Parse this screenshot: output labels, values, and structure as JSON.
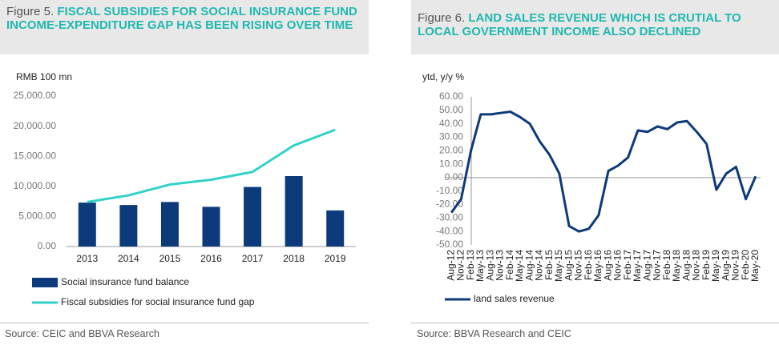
{
  "chart_data": [
    {
      "type": "combo",
      "figure": "Figure 5.",
      "title": "FISCAL SUBSIDIES FOR SOCIAL INSURANCE FUND INCOME-EXPENDITURE GAP HAS BEEN RISING OVER TIME",
      "y_label": "RMB 100 mn",
      "source": "Source: CEIC and BBVA Research",
      "categories": [
        "2013",
        "2014",
        "2015",
        "2016",
        "2017",
        "2018",
        "2019"
      ],
      "series": [
        {
          "name": "Social insurance fund balance",
          "type": "bar",
          "color": "#0d3a7a",
          "values": [
            7300,
            6900,
            7400,
            6600,
            9900,
            11700,
            6000
          ]
        },
        {
          "name": "Fiscal subsidies for social insurance fund gap",
          "type": "line",
          "color": "#33d1c9",
          "values": [
            7400,
            8500,
            10300,
            11100,
            12400,
            16800,
            19400
          ]
        }
      ],
      "ylim": [
        0,
        25000
      ],
      "yticks": [
        {
          "value": 0,
          "label": "0.00"
        },
        {
          "value": 5000,
          "label": "5,000.00"
        },
        {
          "value": 10000,
          "label": "10,000.00"
        },
        {
          "value": 15000,
          "label": "15,000.00"
        },
        {
          "value": 20000,
          "label": "20,000.00"
        },
        {
          "value": 25000,
          "label": "25,000.00"
        }
      ]
    },
    {
      "type": "line",
      "figure": "Figure 6.",
      "title": "LAND SALES REVENUE WHICH IS CRUTIAL TO LOCAL GOVERNMENT INCOME ALSO DECLINED",
      "y_label": "ytd, y/y %",
      "source": "Source: BBVA Research and CEIC",
      "categories": [
        "Aug-12",
        "Nov-12",
        "Feb-13",
        "May-13",
        "Aug-13",
        "Nov-13",
        "Feb-14",
        "May-14",
        "Aug-14",
        "Nov-14",
        "Feb-15",
        "May-15",
        "Aug-15",
        "Nov-15",
        "Feb-16",
        "May-16",
        "Aug-16",
        "Nov-16",
        "Feb-17",
        "May-17",
        "Aug-17",
        "Nov-17",
        "Feb-18",
        "May-18",
        "Aug-18",
        "Nov-18",
        "Feb-19",
        "May-19",
        "Aug-19",
        "Nov-19",
        "Feb-20",
        "May-20"
      ],
      "series": [
        {
          "name": "land sales revenue",
          "type": "line",
          "color": "#0d3a7a",
          "values": [
            -26,
            -16,
            20,
            47,
            47,
            48,
            49,
            45,
            40,
            27,
            17,
            3,
            -36,
            -40,
            -38,
            -28,
            5,
            9,
            15,
            35,
            34,
            38,
            36,
            41,
            42,
            34,
            25,
            -9,
            3,
            8,
            -16,
            1
          ]
        }
      ],
      "ylim": [
        -50,
        60
      ],
      "yticks": [
        {
          "value": -50,
          "label": "-50.00"
        },
        {
          "value": -40,
          "label": "-40.00"
        },
        {
          "value": -30,
          "label": "-30.00"
        },
        {
          "value": -20,
          "label": "-20.00"
        },
        {
          "value": -10,
          "label": "-10.00"
        },
        {
          "value": 0,
          "label": "0.00"
        },
        {
          "value": 10,
          "label": "10.00"
        },
        {
          "value": 20,
          "label": "20.00"
        },
        {
          "value": 30,
          "label": "30.00"
        },
        {
          "value": 40,
          "label": "40.00"
        },
        {
          "value": 50,
          "label": "50.00"
        },
        {
          "value": 60,
          "label": "60.00"
        }
      ]
    }
  ]
}
